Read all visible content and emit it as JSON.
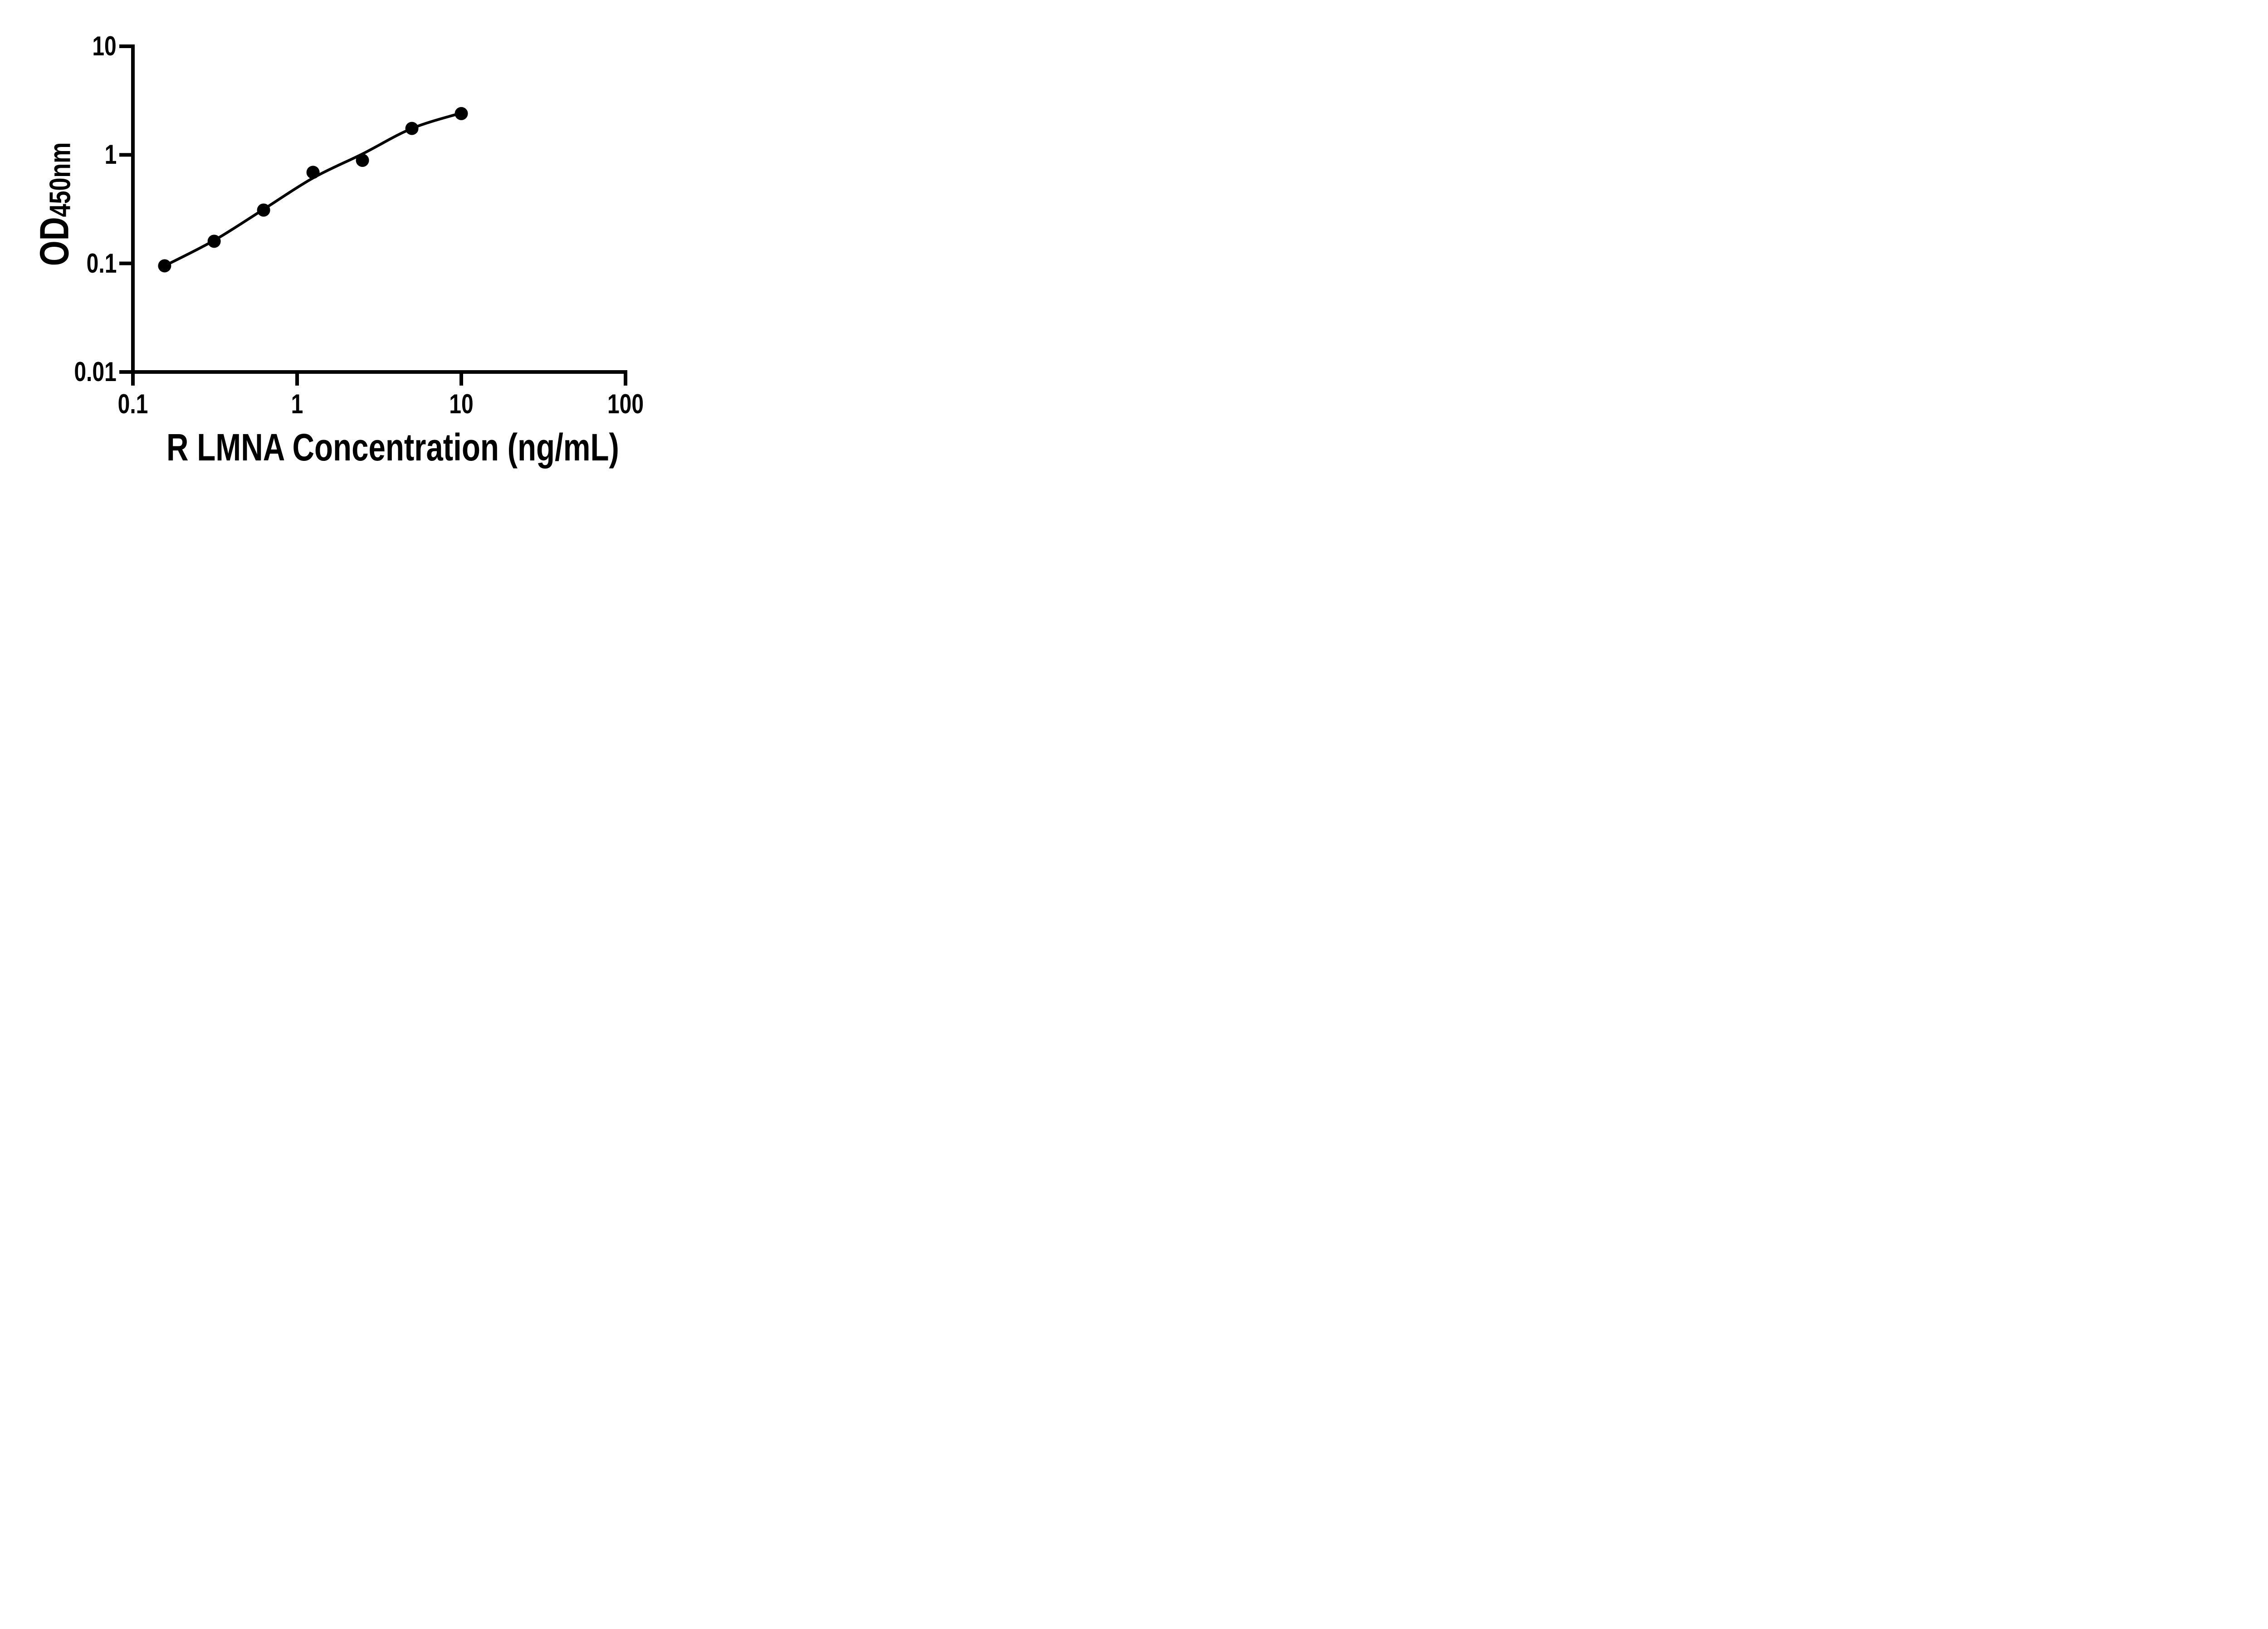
{
  "figure": {
    "background": "#ffffff",
    "ink_color": "#000000"
  },
  "axes": {
    "x": {
      "title": "R LMNA Concentration (ng/mL)",
      "scale": "log",
      "min": 0.1,
      "max": 100,
      "tick_values": [
        0.1,
        1,
        10,
        100
      ],
      "tick_labels": [
        "0.1",
        "1",
        "10",
        "100"
      ]
    },
    "y": {
      "title_main": "OD",
      "title_sub": "450nm",
      "scale": "log",
      "min": 0.01,
      "max": 10,
      "tick_values": [
        0.01,
        0.1,
        1,
        10
      ],
      "tick_labels": [
        "0.01",
        "0.1",
        "1",
        "10"
      ]
    }
  },
  "chart_data": {
    "type": "scatter",
    "title": "",
    "xlabel": "R LMNA Concentration (ng/mL)",
    "ylabel": "OD450nm",
    "x_scale": "log",
    "y_scale": "log",
    "xlim": [
      0.1,
      100
    ],
    "ylim": [
      0.01,
      10
    ],
    "grid": false,
    "legend": "none",
    "marker": "filled-circle",
    "marker_color": "#000000",
    "line_color": "#000000",
    "x": [
      0.156,
      0.3125,
      0.625,
      1.25,
      2.5,
      5,
      10
    ],
    "y": [
      0.095,
      0.16,
      0.31,
      0.69,
      0.89,
      1.75,
      2.4
    ],
    "fit_x": [
      0.156,
      0.3125,
      0.625,
      1.25,
      2.5,
      5,
      10
    ],
    "fit_y": [
      0.095,
      0.163,
      0.315,
      0.612,
      1.02,
      1.75,
      2.43
    ]
  }
}
